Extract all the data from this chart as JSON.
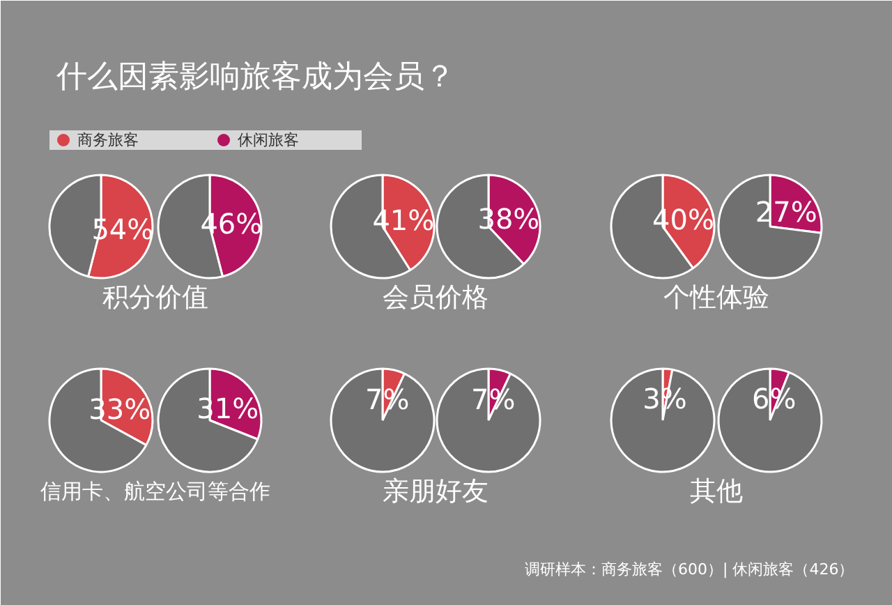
{
  "chart_data": [
    {
      "type": "pie",
      "title": "什么因素影响旅客成为会员？",
      "legend": "top",
      "xlabel": "积分价值",
      "categories": [
        null,
        null
      ],
      "series": [
        {
          "name": "商务旅客",
          "colors": [
            "#d9434a",
            "#707070"
          ],
          "values": [
            54,
            46
          ],
          "value_labels": [
            "54%",
            null
          ]
        },
        {
          "name": "休闲旅客",
          "colors": [
            "#b5135f",
            "#707070"
          ],
          "values": [
            46,
            54
          ],
          "value_labels": [
            "46%",
            null
          ]
        }
      ]
    },
    {
      "type": "pie",
      "xlabel": "会员价格",
      "categories": [
        null,
        null
      ],
      "series": [
        {
          "colors": [
            "#d9434a",
            "#707070"
          ],
          "values": [
            41,
            59
          ],
          "value_labels": [
            "41%",
            null
          ]
        },
        {
          "colors": [
            "#b5135f",
            "#707070"
          ],
          "values": [
            38,
            62
          ],
          "value_labels": [
            "38%",
            null
          ]
        }
      ]
    },
    {
      "type": "pie",
      "xlabel": "个性体验",
      "categories": [
        null,
        null
      ],
      "series": [
        {
          "colors": [
            "#d9434a",
            "#707070"
          ],
          "values": [
            40,
            60
          ],
          "value_labels": [
            "40%",
            null
          ]
        },
        {
          "colors": [
            "#b5135f",
            "#707070"
          ],
          "values": [
            27,
            73
          ],
          "value_labels": [
            "27%",
            null
          ]
        }
      ]
    },
    {
      "type": "pie",
      "xlabel": "信用卡、航空公司等合作",
      "categories": [
        null,
        null
      ],
      "series": [
        {
          "colors": [
            "#d9434a",
            "#707070"
          ],
          "values": [
            33,
            67
          ],
          "value_labels": [
            "33%",
            null
          ]
        },
        {
          "colors": [
            "#b5135f",
            "#707070"
          ],
          "values": [
            31,
            69
          ],
          "value_labels": [
            "31%",
            null
          ]
        }
      ]
    },
    {
      "type": "pie",
      "xlabel": "亲朋好友",
      "categories": [
        null,
        null
      ],
      "series": [
        {
          "colors": [
            "#d9434a",
            "#707070"
          ],
          "values": [
            7,
            93
          ],
          "value_labels": [
            "7%",
            null
          ]
        },
        {
          "colors": [
            "#b5135f",
            "#707070"
          ],
          "values": [
            7,
            93
          ],
          "value_labels": [
            "7%",
            null
          ]
        }
      ]
    },
    {
      "type": "pie",
      "xlabel": "其他",
      "categories": [
        null,
        null
      ],
      "annotations": [
        "调研样本：商务旅客（600）| 休闲旅客（426）"
      ],
      "series": [
        {
          "colors": [
            "#d9434a",
            "#707070"
          ],
          "values": [
            3,
            97
          ],
          "value_labels": [
            "3%",
            null
          ]
        },
        {
          "colors": [
            "#b5135f",
            "#707070"
          ],
          "values": [
            6,
            94
          ],
          "value_labels": [
            "6%",
            null
          ]
        }
      ]
    }
  ]
}
